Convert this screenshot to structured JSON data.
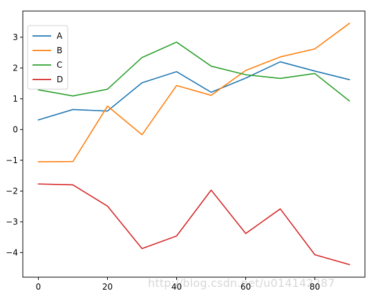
{
  "chart_data": {
    "type": "line",
    "title": "",
    "xlabel": "",
    "ylabel": "",
    "x": [
      0,
      10,
      20,
      30,
      40,
      50,
      60,
      70,
      80,
      90
    ],
    "xlim": [
      -4.5,
      94.5
    ],
    "ylim": [
      -4.8,
      3.85
    ],
    "x_ticks": [
      0,
      20,
      40,
      60,
      80
    ],
    "y_ticks": [
      -4,
      -3,
      -2,
      -1,
      0,
      1,
      2,
      3
    ],
    "x_tick_labels": [
      "0",
      "20",
      "40",
      "60",
      "80"
    ],
    "y_tick_labels": [
      "−4",
      "−3",
      "−2",
      "−1",
      "0",
      "1",
      "2",
      "3"
    ],
    "grid": false,
    "legend_position": "top-left",
    "series": [
      {
        "name": "A",
        "color": "#1f77b4",
        "values": [
          0.31,
          0.65,
          0.6,
          1.52,
          1.88,
          1.21,
          1.67,
          2.2,
          1.9,
          1.62
        ]
      },
      {
        "name": "B",
        "color": "#ff7f0e",
        "values": [
          -1.05,
          -1.04,
          0.76,
          -0.17,
          1.43,
          1.11,
          1.92,
          2.36,
          2.62,
          3.45
        ]
      },
      {
        "name": "C",
        "color": "#2ca02c",
        "values": [
          1.29,
          1.09,
          1.31,
          2.34,
          2.84,
          2.06,
          1.78,
          1.66,
          1.82,
          0.93
        ]
      },
      {
        "name": "D",
        "color": "#d62728",
        "values": [
          -1.77,
          -1.8,
          -2.49,
          -3.87,
          -3.46,
          -1.97,
          -3.38,
          -2.58,
          -4.07,
          -4.39
        ]
      }
    ]
  },
  "watermark": "http://blog.csdn.net/u014142287"
}
